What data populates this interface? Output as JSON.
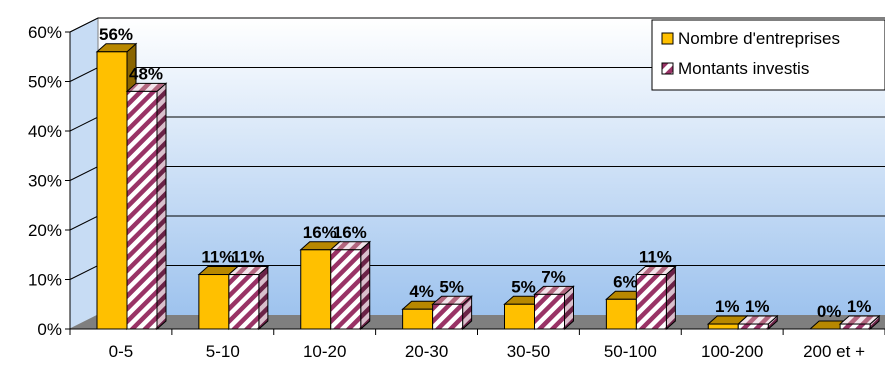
{
  "chart_data": {
    "type": "bar",
    "categories": [
      "0-5",
      "5-10",
      "10-20",
      "20-30",
      "30-50",
      "50-100",
      "100-200",
      "200 et +"
    ],
    "series": [
      {
        "name": "Nombre d'entreprises",
        "values": [
          56,
          11,
          16,
          4,
          5,
          6,
          1,
          0
        ],
        "color": "#FFC000"
      },
      {
        "name": "Montants investis",
        "values": [
          48,
          11,
          16,
          5,
          7,
          11,
          1,
          1
        ],
        "color": "#993366"
      }
    ],
    "y_ticks": [
      "0%",
      "10%",
      "20%",
      "30%",
      "40%",
      "50%",
      "60%"
    ],
    "ylim": [
      0,
      60
    ],
    "grid": true,
    "legend_position": "top-right",
    "title": "",
    "xlabel": "",
    "ylabel": ""
  }
}
